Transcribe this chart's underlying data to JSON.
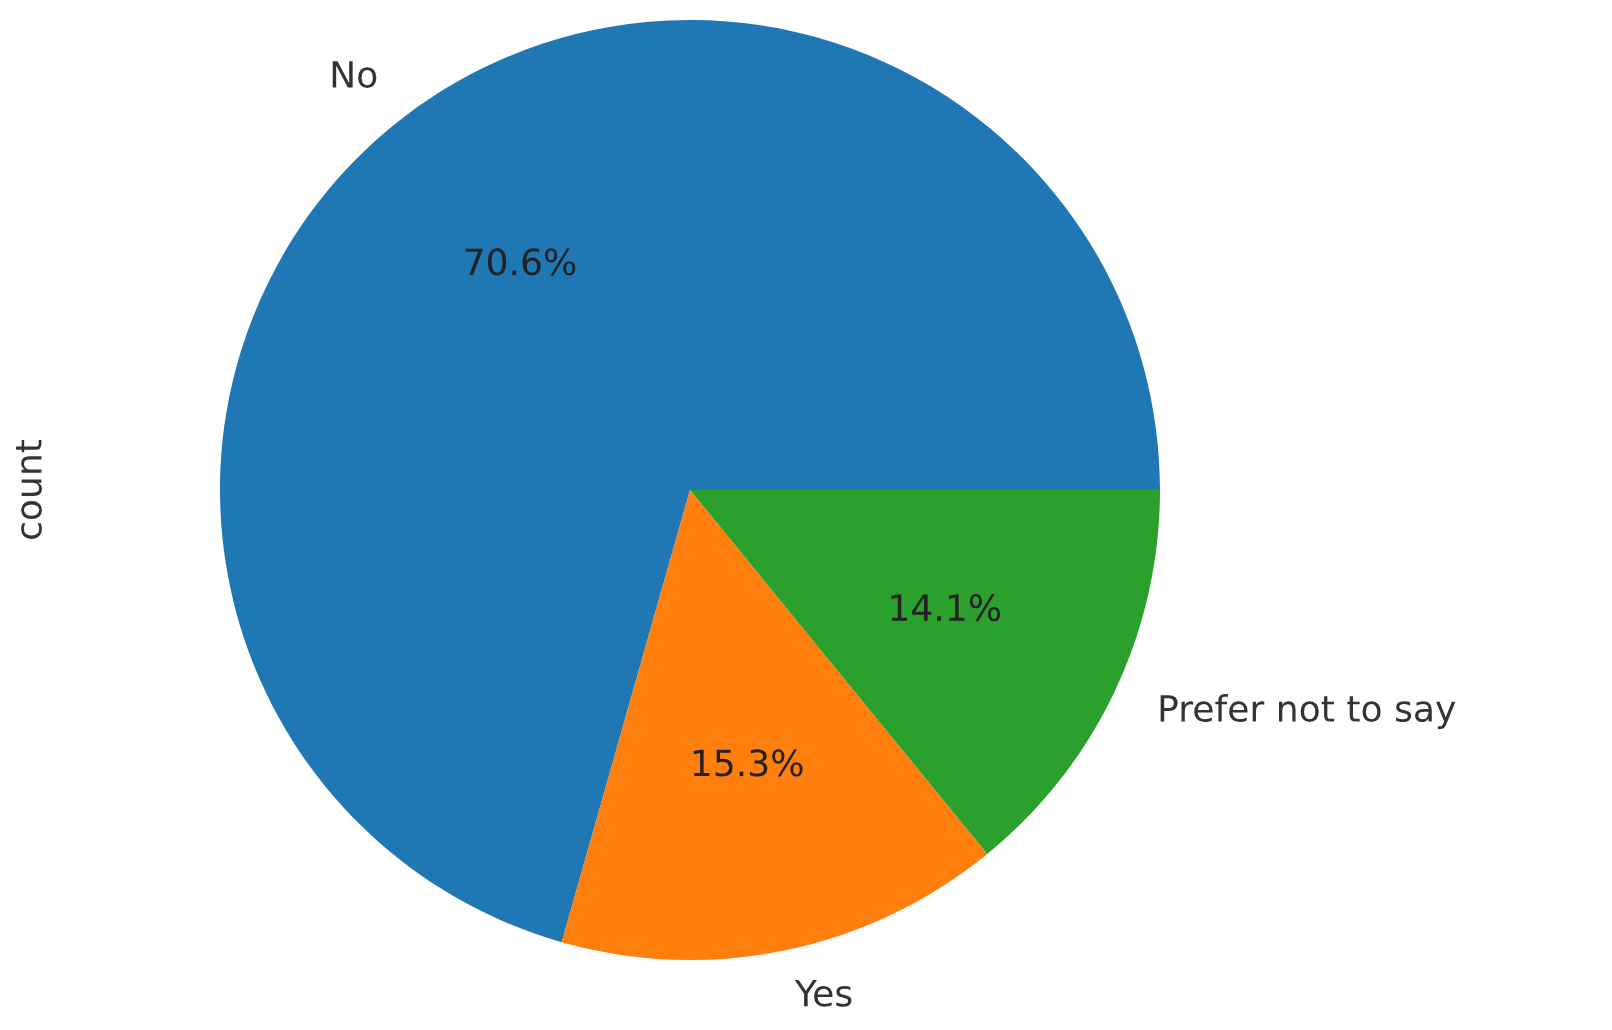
{
  "chart_data": {
    "type": "pie",
    "ylabel": "count",
    "categories": [
      "No",
      "Yes",
      "Prefer not to say"
    ],
    "values": [
      70.6,
      15.3,
      14.1
    ],
    "colors": [
      "#1f77b4",
      "#ff7f0e",
      "#2ca02c"
    ],
    "value_labels": [
      "70.6%",
      "15.3%",
      "14.1%"
    ]
  }
}
